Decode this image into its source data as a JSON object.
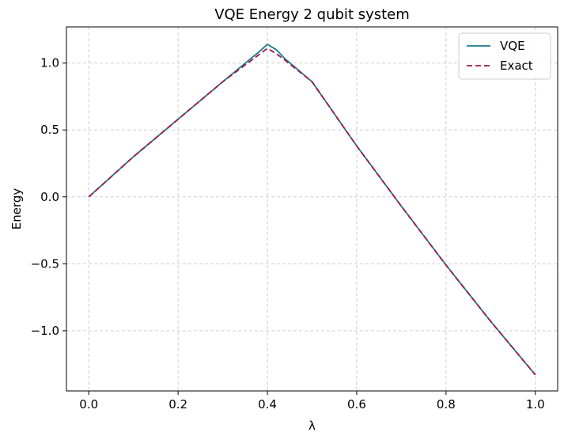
{
  "chart_data": {
    "type": "line",
    "title": "VQE Energy 2 qubit system",
    "xlabel": "λ",
    "ylabel": "Energy",
    "xlim": [
      -0.05,
      1.05
    ],
    "ylim": [
      -1.45,
      1.27
    ],
    "xticks": [
      0.0,
      0.2,
      0.4,
      0.6,
      0.8,
      1.0
    ],
    "xtick_labels": [
      "0.0",
      "0.2",
      "0.4",
      "0.6",
      "0.8",
      "1.0"
    ],
    "yticks": [
      -1.0,
      -0.5,
      0.0,
      0.5,
      1.0
    ],
    "ytick_labels": [
      "−1.0",
      "−0.5",
      "0.0",
      "0.5",
      "1.0"
    ],
    "grid": true,
    "legend_position": "top-right",
    "series": [
      {
        "name": "VQE",
        "color": "#1a7a8c",
        "style": "solid",
        "x": [
          0.0,
          0.1,
          0.2,
          0.3,
          0.38,
          0.4,
          0.42,
          0.44,
          0.5,
          0.6,
          0.7,
          0.8,
          0.9,
          1.0
        ],
        "y": [
          0.0,
          0.3,
          0.58,
          0.86,
          1.08,
          1.14,
          1.1,
          1.03,
          0.86,
          0.38,
          -0.07,
          -0.51,
          -0.93,
          -1.33
        ]
      },
      {
        "name": "Exact",
        "color": "#a0154a",
        "style": "dashed",
        "x": [
          0.0,
          0.1,
          0.2,
          0.3,
          0.4,
          0.42,
          0.44,
          0.5,
          0.6,
          0.7,
          0.8,
          0.9,
          1.0
        ],
        "y": [
          0.0,
          0.3,
          0.58,
          0.86,
          1.11,
          1.07,
          1.02,
          0.86,
          0.38,
          -0.07,
          -0.51,
          -0.93,
          -1.33
        ]
      }
    ]
  }
}
